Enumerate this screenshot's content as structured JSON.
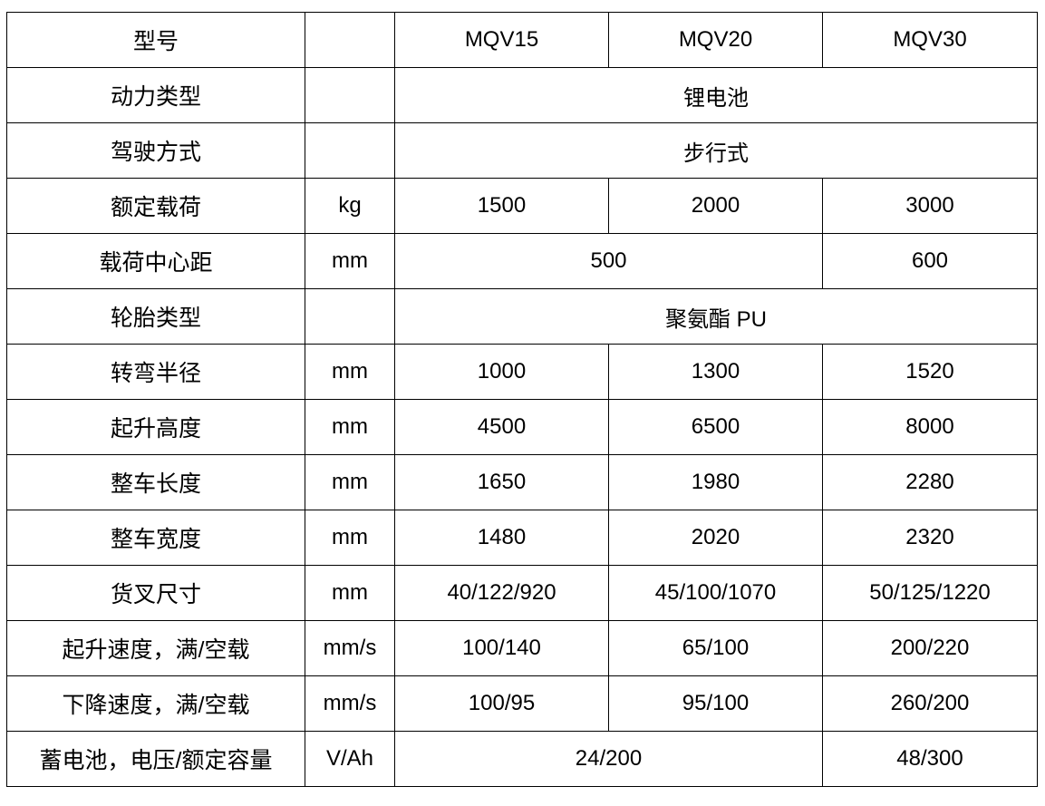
{
  "table": {
    "rows": [
      [
        {
          "text": "型号"
        },
        {
          "text": ""
        },
        {
          "text": "MQV15"
        },
        {
          "text": "MQV20"
        },
        {
          "text": "MQV30"
        }
      ],
      [
        {
          "text": "动力类型"
        },
        {
          "text": ""
        },
        {
          "text": "锂电池",
          "span": 3
        }
      ],
      [
        {
          "text": "驾驶方式"
        },
        {
          "text": ""
        },
        {
          "text": "步行式",
          "span": 3
        }
      ],
      [
        {
          "text": "额定载荷"
        },
        {
          "text": "kg"
        },
        {
          "text": "1500"
        },
        {
          "text": "2000"
        },
        {
          "text": "3000"
        }
      ],
      [
        {
          "text": "载荷中心距"
        },
        {
          "text": "mm"
        },
        {
          "text": "500",
          "span": 2
        },
        {
          "text": "600"
        }
      ],
      [
        {
          "text": "轮胎类型"
        },
        {
          "text": ""
        },
        {
          "text": "聚氨酯 PU",
          "span": 3
        }
      ],
      [
        {
          "text": "转弯半径"
        },
        {
          "text": "mm"
        },
        {
          "text": "1000"
        },
        {
          "text": "1300"
        },
        {
          "text": "1520"
        }
      ],
      [
        {
          "text": "起升高度"
        },
        {
          "text": "mm"
        },
        {
          "text": "4500"
        },
        {
          "text": "6500"
        },
        {
          "text": "8000"
        }
      ],
      [
        {
          "text": "整车长度"
        },
        {
          "text": "mm"
        },
        {
          "text": "1650"
        },
        {
          "text": "1980"
        },
        {
          "text": "2280"
        }
      ],
      [
        {
          "text": "整车宽度"
        },
        {
          "text": "mm"
        },
        {
          "text": "1480"
        },
        {
          "text": "2020"
        },
        {
          "text": "2320"
        }
      ],
      [
        {
          "text": "货叉尺寸"
        },
        {
          "text": "mm"
        },
        {
          "text": "40/122/920"
        },
        {
          "text": "45/100/1070"
        },
        {
          "text": "50/125/1220"
        }
      ],
      [
        {
          "text": "起升速度，满/空载"
        },
        {
          "text": "mm/s"
        },
        {
          "text": "100/140"
        },
        {
          "text": "65/100"
        },
        {
          "text": "200/220"
        }
      ],
      [
        {
          "text": "下降速度，满/空载"
        },
        {
          "text": "mm/s"
        },
        {
          "text": "100/95"
        },
        {
          "text": "95/100"
        },
        {
          "text": "260/200"
        }
      ],
      [
        {
          "text": "蓄电池，电压/额定容量"
        },
        {
          "text": "V/Ah"
        },
        {
          "text": "24/200",
          "span": 2
        },
        {
          "text": "48/300"
        }
      ]
    ]
  }
}
